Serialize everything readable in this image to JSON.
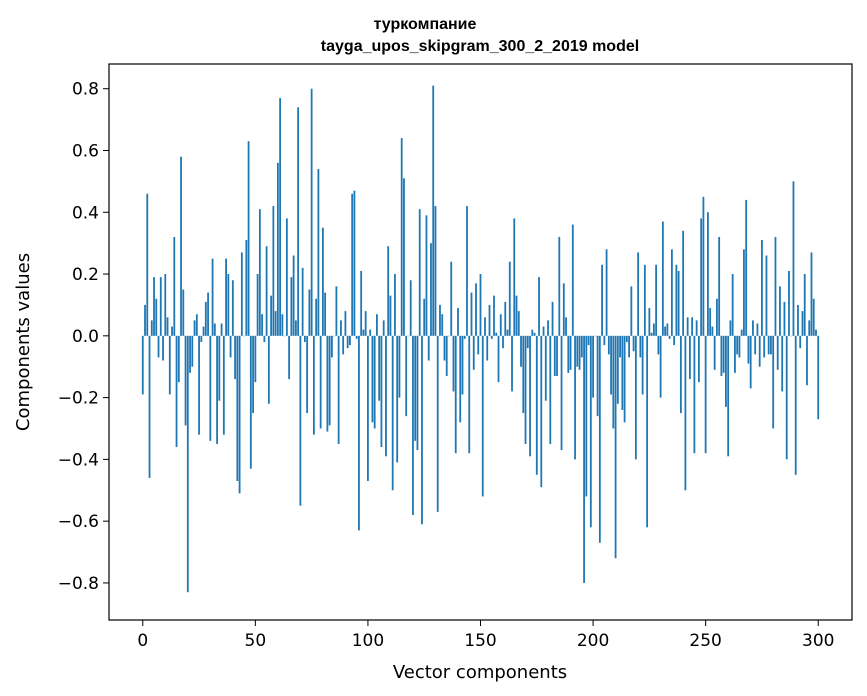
{
  "chart_data": {
    "type": "bar",
    "title_lines": [
      "туркомпание",
      "tayga_upos_skipgram_300_2_2019 model"
    ],
    "xlabel": "Vector components",
    "ylabel": "Components values",
    "xlim": [
      -15,
      315
    ],
    "ylim": [
      -0.92,
      0.88
    ],
    "x_ticks": [
      0,
      50,
      100,
      150,
      200,
      250,
      300
    ],
    "x_tick_labels": [
      "0",
      "50",
      "100",
      "150",
      "200",
      "250",
      "300"
    ],
    "y_ticks": [
      -0.8,
      -0.6,
      -0.4,
      -0.2,
      0.0,
      0.2,
      0.4,
      0.6,
      0.8
    ],
    "y_tick_labels": [
      "−0.8",
      "−0.6",
      "−0.4",
      "−0.2",
      "0.0",
      "0.2",
      "0.4",
      "0.6",
      "0.8"
    ],
    "bar_color": "#1f77b4",
    "grid": false,
    "values": [
      -0.19,
      0.1,
      0.46,
      -0.46,
      0.05,
      0.19,
      0.12,
      -0.07,
      0.19,
      -0.08,
      0.2,
      0.06,
      -0.19,
      0.03,
      0.32,
      -0.36,
      -0.15,
      0.58,
      0.15,
      -0.29,
      -0.83,
      -0.12,
      -0.1,
      0.05,
      0.07,
      -0.32,
      -0.02,
      0.03,
      0.11,
      0.14,
      -0.34,
      0.25,
      0.04,
      -0.35,
      -0.21,
      0.04,
      -0.32,
      0.25,
      0.2,
      -0.07,
      0.18,
      -0.14,
      -0.47,
      -0.51,
      0.27,
      0.0,
      0.31,
      0.63,
      -0.43,
      -0.25,
      -0.15,
      0.2,
      0.41,
      0.07,
      -0.02,
      0.29,
      -0.22,
      0.13,
      0.42,
      0.08,
      0.56,
      0.77,
      0.07,
      0.0,
      0.38,
      -0.14,
      0.19,
      0.26,
      0.05,
      0.74,
      -0.55,
      0.22,
      -0.02,
      -0.25,
      0.15,
      0.8,
      -0.32,
      0.12,
      0.54,
      -0.3,
      0.35,
      0.14,
      -0.31,
      -0.29,
      -0.07,
      0.0,
      0.16,
      -0.35,
      0.05,
      -0.06,
      0.08,
      -0.04,
      -0.03,
      0.46,
      0.47,
      -0.01,
      -0.63,
      0.21,
      0.02,
      0.08,
      -0.47,
      0.02,
      -0.28,
      -0.3,
      0.07,
      -0.21,
      -0.36,
      0.05,
      -0.39,
      0.29,
      0.13,
      -0.5,
      0.2,
      -0.41,
      -0.2,
      0.64,
      0.51,
      -0.26,
      0.0,
      0.18,
      -0.58,
      -0.34,
      -0.37,
      0.41,
      -0.61,
      0.12,
      0.39,
      -0.08,
      0.3,
      0.81,
      0.42,
      -0.57,
      0.1,
      0.07,
      -0.08,
      -0.13,
      0.0,
      0.24,
      -0.18,
      -0.38,
      0.09,
      -0.28,
      -0.19,
      -0.01,
      0.42,
      -0.38,
      0.14,
      -0.11,
      0.17,
      -0.06,
      0.2,
      -0.52,
      0.06,
      -0.08,
      0.1,
      -0.01,
      0.13,
      0.01,
      -0.15,
      0.07,
      -0.04,
      0.11,
      0.02,
      0.24,
      -0.18,
      0.38,
      0.13,
      0.08,
      -0.1,
      -0.25,
      -0.35,
      -0.04,
      -0.39,
      0.02,
      0.01,
      -0.45,
      0.19,
      -0.49,
      0.03,
      -0.21,
      0.05,
      -0.35,
      0.11,
      -0.13,
      -0.13,
      0.32,
      -0.37,
      0.17,
      0.06,
      -0.12,
      -0.11,
      0.36,
      -0.4,
      -0.1,
      -0.11,
      -0.07,
      -0.8,
      -0.52,
      -0.03,
      -0.62,
      -0.2,
      0.0,
      -0.26,
      -0.67,
      0.23,
      -0.03,
      0.28,
      -0.06,
      -0.19,
      -0.3,
      -0.72,
      -0.22,
      -0.07,
      -0.24,
      -0.28,
      -0.02,
      -0.07,
      0.16,
      -0.05,
      -0.4,
      0.27,
      -0.07,
      -0.19,
      0.23,
      -0.62,
      0.09,
      0.01,
      0.04,
      0.23,
      -0.06,
      -0.2,
      0.37,
      0.03,
      0.04,
      -0.01,
      0.28,
      -0.03,
      0.23,
      0.21,
      -0.25,
      0.34,
      -0.5,
      0.06,
      -0.14,
      0.06,
      -0.38,
      0.05,
      -0.15,
      0.38,
      0.45,
      -0.38,
      0.4,
      0.09,
      0.03,
      -0.11,
      0.12,
      0.32,
      -0.13,
      -0.12,
      -0.23,
      -0.39,
      0.05,
      0.2,
      -0.12,
      -0.06,
      -0.07,
      0.02,
      0.28,
      0.44,
      -0.09,
      -0.17,
      0.05,
      -0.06,
      0.04,
      -0.1,
      0.31,
      -0.07,
      0.26,
      -0.06,
      -0.06,
      -0.3,
      0.32,
      -0.11,
      0.16,
      -0.18,
      0.11,
      -0.4,
      0.21,
      0.0,
      0.5,
      -0.45,
      0.1,
      -0.04,
      0.08,
      0.2,
      -0.16,
      0.05,
      0.27,
      0.12,
      0.02,
      -0.27
    ]
  }
}
